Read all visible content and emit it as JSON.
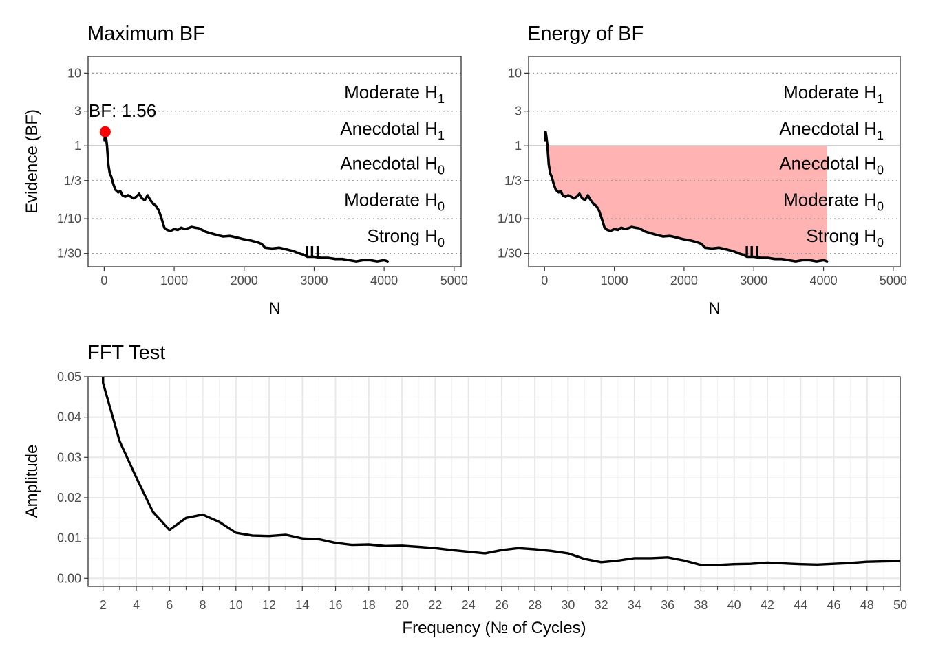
{
  "chart_data": [
    {
      "type": "line",
      "title": "Maximum BF",
      "xlabel": "N",
      "ylabel": "Evidence (BF)",
      "xlim": [
        -230,
        5100
      ],
      "ylim_log10": [
        -1.66,
        1.23
      ],
      "x_ticks": [
        0,
        1000,
        2000,
        3000,
        4000,
        5000
      ],
      "x_tick_labels": [
        "0",
        "1000",
        "2000",
        "3000",
        "4000",
        "5000"
      ],
      "y_ticks": [
        10,
        3,
        1,
        0.3333,
        0.1,
        0.03333
      ],
      "y_tick_labels": [
        "10",
        "3",
        "1",
        "1/3",
        "1/10",
        "1/30"
      ],
      "y_scale": "log",
      "gridlines": "dotted at evidence thresholds",
      "bands": [
        {
          "label": "Moderate H",
          "sub": "1",
          "bf": 5.48
        },
        {
          "label": "Anecdotal H",
          "sub": "1",
          "bf": 1.73
        },
        {
          "label": "Anecdotal H",
          "sub": "0",
          "bf": 0.577
        },
        {
          "label": "Moderate H",
          "sub": "0",
          "bf": 0.183
        },
        {
          "label": "Strong H",
          "sub": "0",
          "bf": 0.058
        }
      ],
      "highlight": {
        "x": 15,
        "y": 1.56,
        "label": "BF: 1.56",
        "color": "#ff0000"
      },
      "series": [
        {
          "x": [
            5,
            15,
            25,
            40,
            60,
            80,
            100,
            130,
            160,
            200,
            230,
            260,
            300,
            340,
            380,
            420,
            460,
            500,
            540,
            580,
            620,
            660,
            700,
            740,
            780,
            820,
            860,
            900,
            950,
            1000,
            1050,
            1100,
            1150,
            1200,
            1250,
            1300,
            1350,
            1400,
            1450,
            1500,
            1600,
            1700,
            1800,
            1900,
            2000,
            2100,
            2200,
            2250,
            2300,
            2400,
            2500,
            2600,
            2700,
            2800,
            2850,
            2900,
            3000,
            3100,
            3200,
            3300,
            3400,
            3500,
            3600,
            3700,
            3800,
            3900,
            4000,
            4050
          ],
          "y": [
            1.2,
            1.56,
            1.35,
            1.0,
            0.55,
            0.42,
            0.38,
            0.3,
            0.25,
            0.23,
            0.24,
            0.21,
            0.2,
            0.21,
            0.2,
            0.19,
            0.2,
            0.22,
            0.19,
            0.18,
            0.21,
            0.18,
            0.16,
            0.15,
            0.13,
            0.1,
            0.075,
            0.07,
            0.068,
            0.072,
            0.07,
            0.075,
            0.072,
            0.074,
            0.077,
            0.075,
            0.074,
            0.07,
            0.066,
            0.064,
            0.06,
            0.057,
            0.058,
            0.055,
            0.052,
            0.05,
            0.047,
            0.045,
            0.04,
            0.039,
            0.04,
            0.038,
            0.036,
            0.033,
            0.032,
            0.03,
            0.03,
            0.029,
            0.029,
            0.028,
            0.028,
            0.027,
            0.026,
            0.027,
            0.027,
            0.026,
            0.027,
            0.026
          ]
        }
      ]
    },
    {
      "type": "area",
      "title": "Energy of BF",
      "xlabel": "N",
      "ylabel": "",
      "xlim": [
        -230,
        5100
      ],
      "ylim_log10": [
        -1.66,
        1.23
      ],
      "x_ticks": [
        0,
        1000,
        2000,
        3000,
        4000,
        5000
      ],
      "x_tick_labels": [
        "0",
        "1000",
        "2000",
        "3000",
        "4000",
        "5000"
      ],
      "y_ticks": [
        10,
        3,
        1,
        0.3333,
        0.1,
        0.03333
      ],
      "y_tick_labels": [
        "10",
        "3",
        "1",
        "1/3",
        "1/10",
        "1/30"
      ],
      "y_scale": "log",
      "fill_color": "#ffb3b3",
      "fill_region": "between series and BF = 1, x from 0 to 4050",
      "bands": [
        {
          "label": "Moderate H",
          "sub": "1",
          "bf": 5.48
        },
        {
          "label": "Anecdotal H",
          "sub": "1",
          "bf": 1.73
        },
        {
          "label": "Anecdotal H",
          "sub": "0",
          "bf": 0.577
        },
        {
          "label": "Moderate H",
          "sub": "0",
          "bf": 0.183
        },
        {
          "label": "Strong H",
          "sub": "0",
          "bf": 0.058
        }
      ]
    },
    {
      "type": "line",
      "title": "FFT Test",
      "xlabel": "Frequency (№ of Cycles)",
      "ylabel": "Amplitude",
      "xlim": [
        1.1,
        50
      ],
      "ylim": [
        -0.002,
        0.05
      ],
      "x_ticks": [
        2,
        4,
        6,
        8,
        10,
        12,
        14,
        16,
        18,
        20,
        22,
        24,
        26,
        28,
        30,
        32,
        34,
        36,
        38,
        40,
        42,
        44,
        46,
        48,
        50
      ],
      "y_ticks": [
        0,
        0.01,
        0.02,
        0.03,
        0.04,
        0.05
      ],
      "y_tick_labels": [
        "0.00",
        "0.01",
        "0.02",
        "0.03",
        "0.04",
        "0.05"
      ],
      "grid": true,
      "series": [
        {
          "x": [
            2,
            3,
            4,
            5,
            6,
            7,
            8,
            9,
            10,
            11,
            12,
            13,
            14,
            15,
            16,
            17,
            18,
            19,
            20,
            21,
            22,
            23,
            24,
            25,
            26,
            27,
            28,
            29,
            30,
            31,
            32,
            33,
            34,
            35,
            36,
            37,
            38,
            39,
            40,
            41,
            42,
            43,
            44,
            45,
            46,
            47,
            48,
            49,
            50
          ],
          "y": [
            0.0485,
            0.034,
            0.025,
            0.0165,
            0.012,
            0.015,
            0.0158,
            0.014,
            0.0113,
            0.0106,
            0.0105,
            0.0108,
            0.0099,
            0.0097,
            0.0088,
            0.0083,
            0.0084,
            0.008,
            0.0081,
            0.0078,
            0.0075,
            0.007,
            0.0066,
            0.0062,
            0.007,
            0.0075,
            0.0072,
            0.0068,
            0.0062,
            0.0048,
            0.004,
            0.0044,
            0.005,
            0.005,
            0.0052,
            0.0044,
            0.0033,
            0.0033,
            0.0035,
            0.0036,
            0.0039,
            0.0037,
            0.0035,
            0.0034,
            0.0036,
            0.0038,
            0.0041,
            0.0042,
            0.0043
          ]
        }
      ]
    }
  ]
}
